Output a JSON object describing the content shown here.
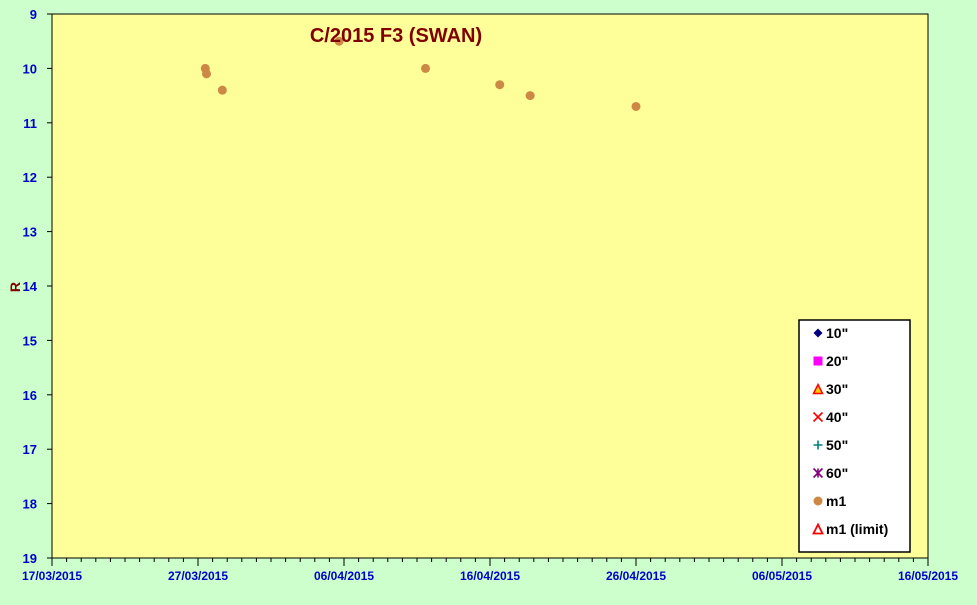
{
  "chart_data": {
    "type": "scatter",
    "title": "C/2015 F3 (SWAN)",
    "xlabel": "",
    "ylabel": "R",
    "x_axis": {
      "kind": "date",
      "min": "2015-03-17",
      "max": "2015-05-16",
      "major_ticks": [
        "2015-03-17",
        "2015-03-27",
        "2015-04-06",
        "2015-04-16",
        "2015-04-26",
        "2015-05-06",
        "2015-05-16"
      ],
      "tick_labels": [
        "17/03/2015",
        "27/03/2015",
        "06/04/2015",
        "16/04/2015",
        "26/04/2015",
        "06/05/2015",
        "16/05/2015"
      ],
      "minor_tick_interval_days": 1
    },
    "y_axis": {
      "min": 9,
      "max": 19,
      "reversed": true,
      "tick_labels": [
        "9",
        "10",
        "11",
        "12",
        "13",
        "14",
        "15",
        "16",
        "17",
        "18",
        "19"
      ]
    },
    "grid": false,
    "legend_position": "bottom-right",
    "legend": [
      {
        "label": "10\"",
        "marker": "diamond",
        "color": "#000080"
      },
      {
        "label": "20\"",
        "marker": "square",
        "color": "#ff00ff"
      },
      {
        "label": "30\"",
        "marker": "triangle",
        "color": "#ff0000",
        "fill": "#ffcc00"
      },
      {
        "label": "40\"",
        "marker": "x",
        "color": "#ff0000"
      },
      {
        "label": "50\"",
        "marker": "plus",
        "color": "#008080"
      },
      {
        "label": "60\"",
        "marker": "star",
        "color": "#800080"
      },
      {
        "label": "m1",
        "marker": "circle",
        "color": "#cc8844"
      },
      {
        "label": "m1 (limit)",
        "marker": "triangle-open",
        "color": "#ff0000"
      }
    ],
    "series": [
      {
        "name": "10\"",
        "points": []
      },
      {
        "name": "20\"",
        "points": []
      },
      {
        "name": "30\"",
        "points": []
      },
      {
        "name": "40\"",
        "points": []
      },
      {
        "name": "50\"",
        "points": []
      },
      {
        "name": "60\"",
        "points": []
      },
      {
        "name": "m1",
        "points": [
          {
            "x": "2015-03-27 12:00",
            "y": 10.0
          },
          {
            "x": "2015-03-27 14:00",
            "y": 10.1
          },
          {
            "x": "2015-03-28 16:00",
            "y": 10.4
          },
          {
            "x": "2015-04-05 16:00",
            "y": 9.5
          },
          {
            "x": "2015-04-11 14:00",
            "y": 10.0
          },
          {
            "x": "2015-04-16 16:00",
            "y": 10.3
          },
          {
            "x": "2015-04-18 18:00",
            "y": 10.5
          },
          {
            "x": "2015-04-26 00:00",
            "y": 10.7
          }
        ]
      },
      {
        "name": "m1 (limit)",
        "points": []
      }
    ],
    "colors": {
      "page_background": "#ccffcc",
      "plot_background": "#ffff99",
      "axis_text": "#0000cc",
      "title_text": "#800000",
      "axis_line": "#000000"
    }
  }
}
